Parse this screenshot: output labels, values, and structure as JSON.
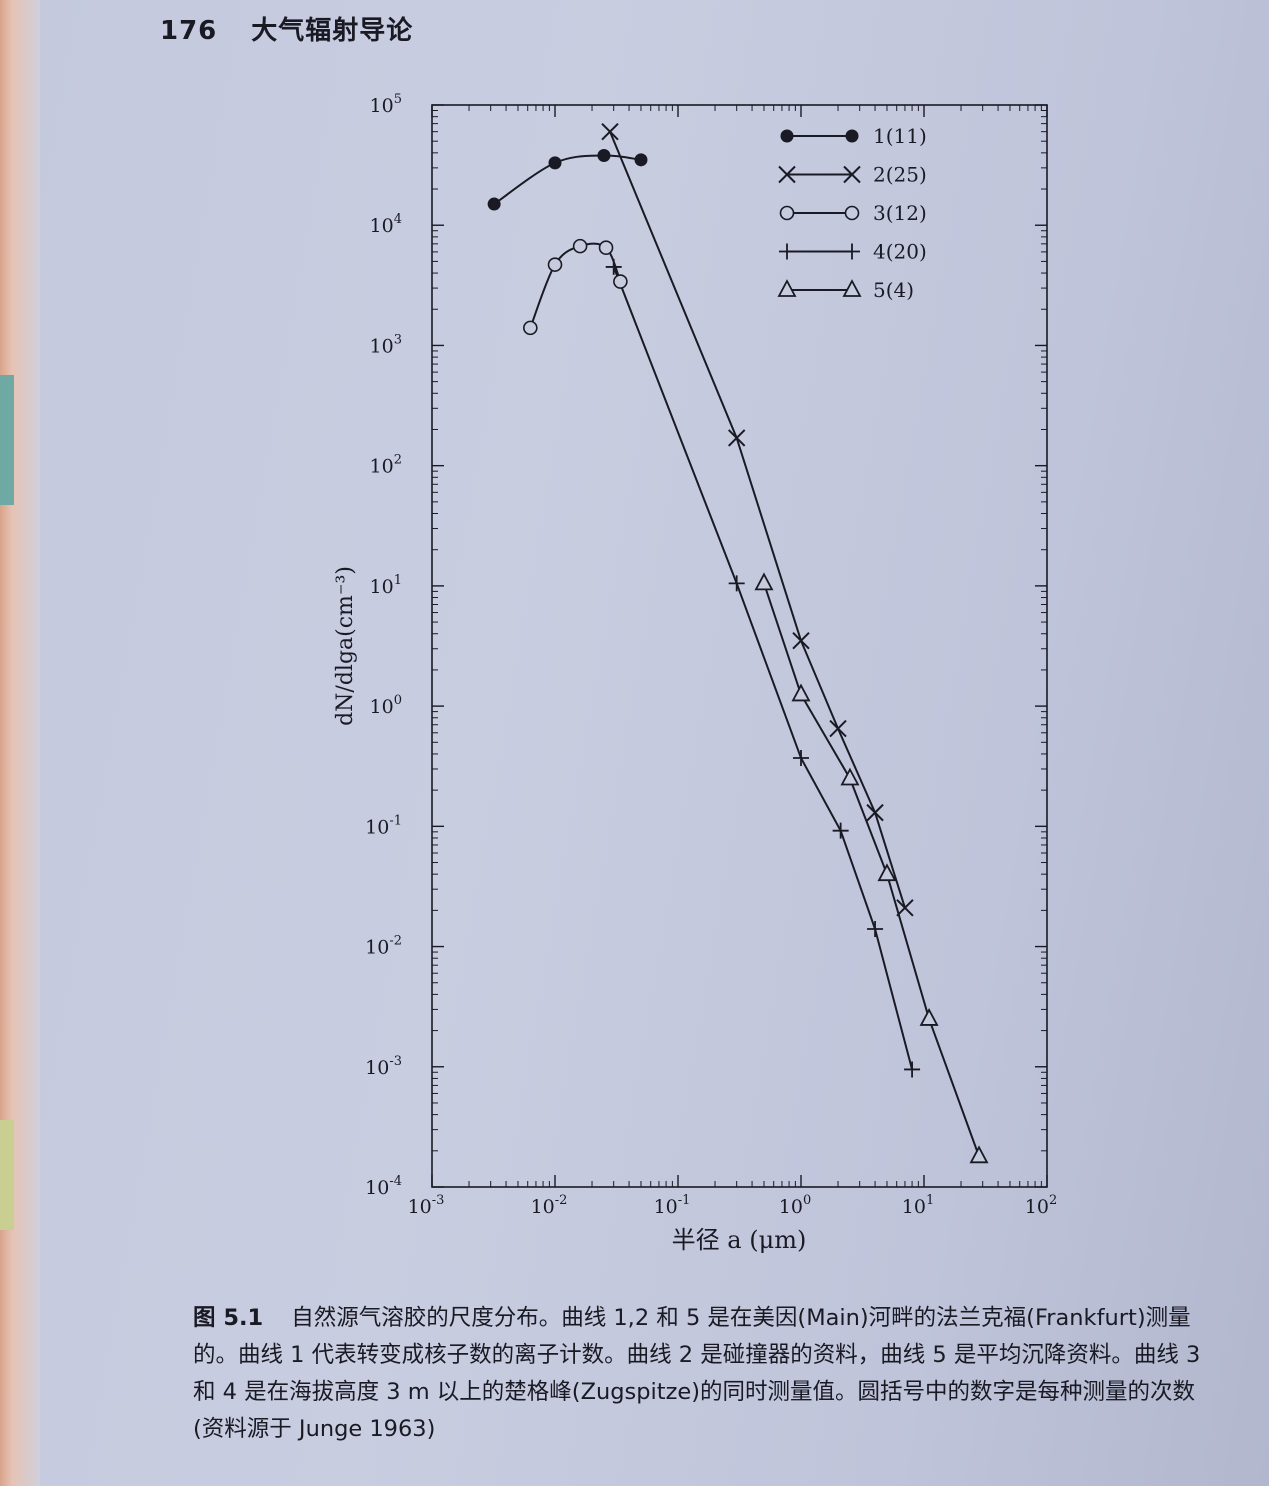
{
  "header": {
    "page_number": "176",
    "book_title": "大气辐射导论"
  },
  "caption": {
    "figure_number": "图 5.1",
    "text": "自然源气溶胶的尺度分布。曲线 1,2 和 5 是在美因(Main)河畔的法兰克福(Frankfurt)测量的。曲线 1 代表转变成核子数的离子计数。曲线 2 是碰撞器的资料，曲线 5 是平均沉降资料。曲线 3 和 4 是在海拔高度 3 m 以上的楚格峰(Zugspitze)的同时测量值。圆括号中的数字是每种测量的次数(资料源于 Junge 1963)"
  },
  "chart_data": {
    "type": "line",
    "xlabel": "半径 a (μm)",
    "ylabel": "dN/dlga(cm⁻³)",
    "x_scale": "log",
    "y_scale": "log",
    "xlim": [
      0.001,
      100
    ],
    "ylim": [
      0.0001,
      100000
    ],
    "x_ticks": [
      {
        "value": 0.001,
        "base": "10",
        "exp": "-3"
      },
      {
        "value": 0.01,
        "base": "10",
        "exp": "-2"
      },
      {
        "value": 0.1,
        "base": "10",
        "exp": "-1"
      },
      {
        "value": 1,
        "base": "10",
        "exp": "0"
      },
      {
        "value": 10,
        "base": "10",
        "exp": "1"
      },
      {
        "value": 100,
        "base": "10",
        "exp": "2"
      }
    ],
    "y_ticks": [
      {
        "value": 0.0001,
        "base": "10",
        "exp": "-4"
      },
      {
        "value": 0.001,
        "base": "10",
        "exp": "-3"
      },
      {
        "value": 0.01,
        "base": "10",
        "exp": "-2"
      },
      {
        "value": 0.1,
        "base": "10",
        "exp": "-1"
      },
      {
        "value": 1,
        "base": "10",
        "exp": "0"
      },
      {
        "value": 10,
        "base": "10",
        "exp": "1"
      },
      {
        "value": 100,
        "base": "10",
        "exp": "2"
      },
      {
        "value": 1000,
        "base": "10",
        "exp": "3"
      },
      {
        "value": 10000,
        "base": "10",
        "exp": "4"
      },
      {
        "value": 100000,
        "base": "10",
        "exp": "5"
      }
    ],
    "grid": false,
    "legend_position": "top-right",
    "series": [
      {
        "name": "1(11)",
        "marker": "filled-circle",
        "smooth": true,
        "points": [
          [
            0.0032,
            15000
          ],
          [
            0.01,
            33000
          ],
          [
            0.025,
            38000
          ],
          [
            0.05,
            35000
          ]
        ]
      },
      {
        "name": "2(25)",
        "marker": "x",
        "smooth": false,
        "points": [
          [
            0.028,
            60000
          ],
          [
            0.3,
            170
          ],
          [
            1.0,
            3.5
          ],
          [
            2.0,
            0.65
          ],
          [
            4.0,
            0.13
          ],
          [
            7.0,
            0.021
          ]
        ]
      },
      {
        "name": "3(12)",
        "marker": "open-circle",
        "smooth": true,
        "points": [
          [
            0.0063,
            1400
          ],
          [
            0.01,
            4700
          ],
          [
            0.016,
            6700
          ],
          [
            0.026,
            6500
          ],
          [
            0.034,
            3400
          ]
        ]
      },
      {
        "name": "4(20)",
        "marker": "plus",
        "smooth": false,
        "points": [
          [
            0.03,
            4500
          ],
          [
            0.3,
            10.5
          ],
          [
            1.0,
            0.37
          ],
          [
            2.1,
            0.092
          ],
          [
            4.0,
            0.014
          ],
          [
            8.0,
            0.00095
          ]
        ]
      },
      {
        "name": "5(4)",
        "marker": "triangle",
        "smooth": false,
        "points": [
          [
            0.5,
            10.5
          ],
          [
            1.0,
            1.25
          ],
          [
            2.5,
            0.25
          ],
          [
            5.0,
            0.04
          ],
          [
            11.0,
            0.0025
          ],
          [
            28.0,
            0.00018
          ]
        ]
      }
    ]
  }
}
